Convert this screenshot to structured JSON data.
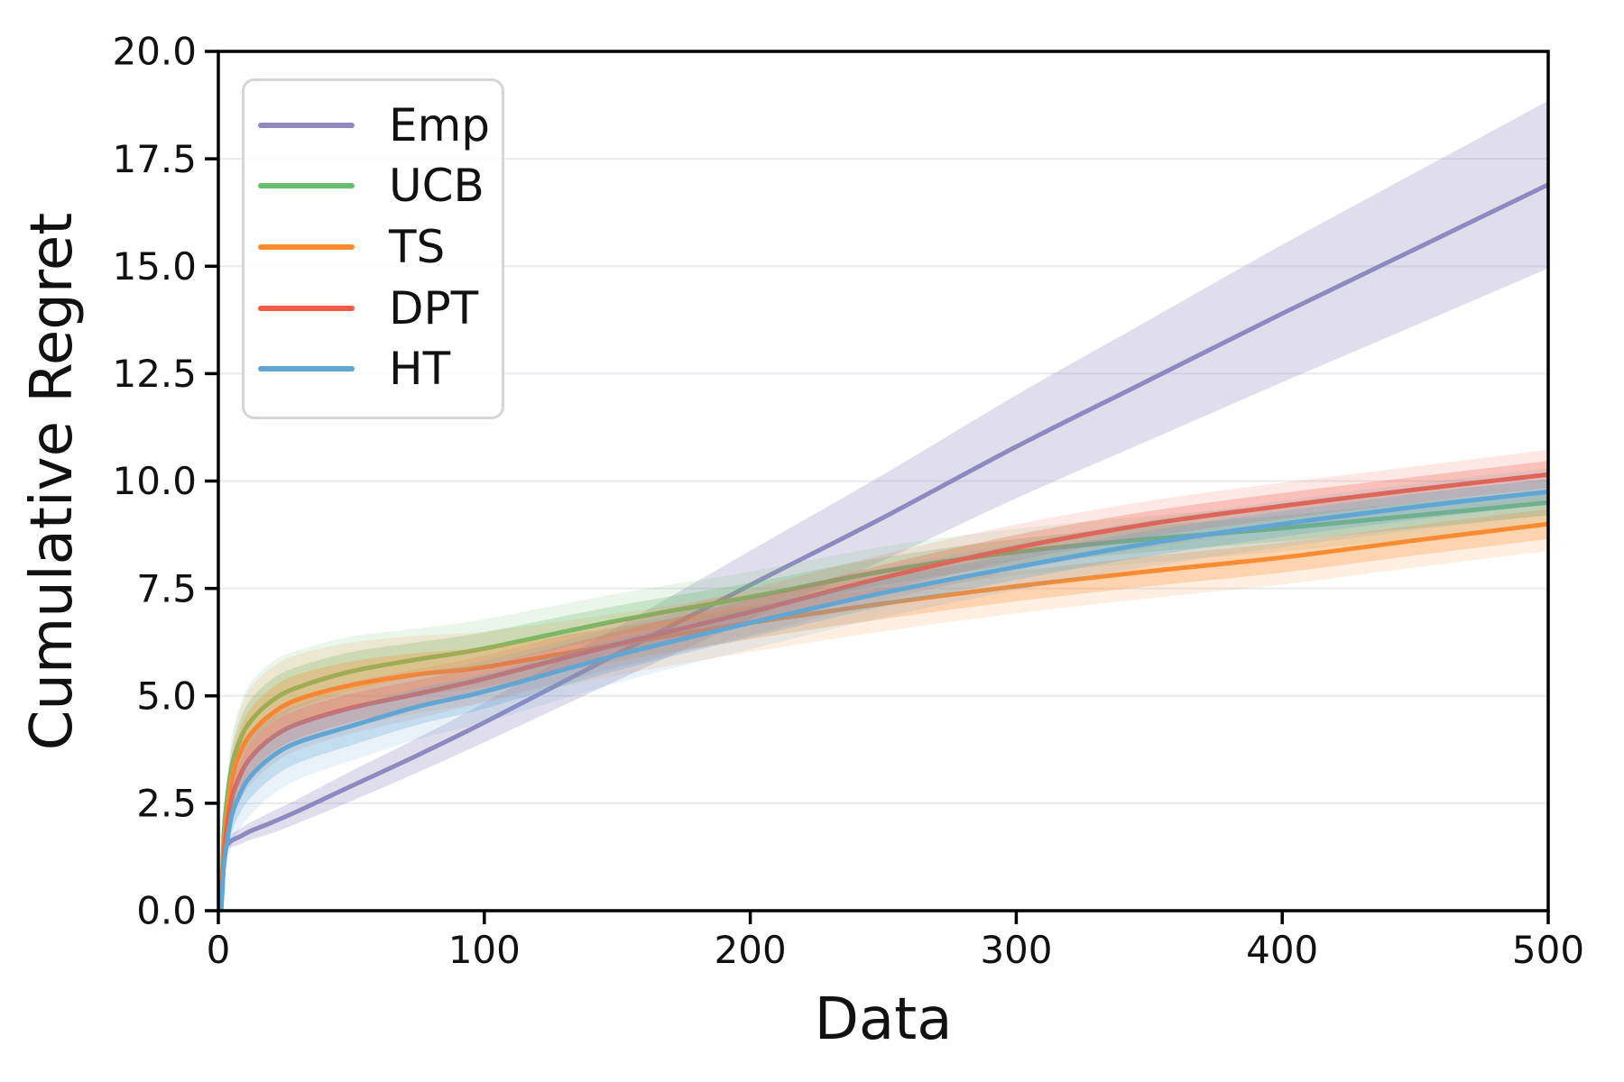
{
  "figure": {
    "xlabel": "Data",
    "ylabel": "Cumulative Regret",
    "background_color": "#ffffff",
    "text_color": "#111111",
    "grid_color": "#e9e9ef",
    "spine_color": "#000000",
    "legend_border_color": "#d5d5d5"
  },
  "chart_data": {
    "type": "line",
    "title": "",
    "xlabel": "Data",
    "ylabel": "Cumulative Regret",
    "xlim": [
      0,
      500
    ],
    "ylim": [
      0,
      20
    ],
    "xticks": [
      "0",
      "100",
      "200",
      "300",
      "400",
      "500"
    ],
    "ytick_values": [
      0,
      2.5,
      5,
      7.5,
      10,
      12.5,
      15,
      17.5,
      20
    ],
    "ytick_labels": [
      "0.0",
      "2.5",
      "5.0",
      "7.5",
      "10.0",
      "12.5",
      "15.0",
      "17.5",
      "20.0"
    ],
    "grid": "horizontal",
    "legend_position": "upper-left",
    "x": [
      0,
      1,
      2,
      3,
      5,
      8,
      12,
      20,
      30,
      50,
      75,
      100,
      150,
      200,
      250,
      300,
      350,
      400,
      450,
      500
    ],
    "series": [
      {
        "name": "Emp",
        "color": "#8e8ac0",
        "values": [
          0,
          0,
          1.3,
          1.5,
          1.63,
          1.72,
          1.85,
          2.05,
          2.32,
          2.9,
          3.62,
          4.38,
          5.98,
          7.58,
          9.15,
          10.8,
          12.35,
          13.9,
          15.4,
          16.9
        ],
        "band_halfwidth": [
          0,
          0.05,
          0.1,
          0.12,
          0.15,
          0.18,
          0.2,
          0.25,
          0.28,
          0.35,
          0.4,
          0.46,
          0.62,
          0.8,
          1.0,
          1.2,
          1.4,
          1.6,
          1.78,
          1.95
        ]
      },
      {
        "name": "UCB",
        "color": "#68be6d",
        "values": [
          0,
          0,
          1.7,
          2.45,
          3.35,
          3.95,
          4.4,
          4.88,
          5.2,
          5.57,
          5.85,
          6.1,
          6.75,
          7.3,
          7.9,
          8.35,
          8.65,
          8.9,
          9.2,
          9.5
        ],
        "band_halfwidth": [
          0,
          0.05,
          0.18,
          0.25,
          0.38,
          0.45,
          0.5,
          0.5,
          0.48,
          0.45,
          0.4,
          0.38,
          0.35,
          0.33,
          0.32,
          0.3,
          0.3,
          0.3,
          0.3,
          0.3
        ]
      },
      {
        "name": "TS",
        "color": "#fb8b30",
        "values": [
          0,
          0,
          1.45,
          2.15,
          3.05,
          3.65,
          4.1,
          4.58,
          4.92,
          5.25,
          5.5,
          5.67,
          6.2,
          6.7,
          7.15,
          7.55,
          7.9,
          8.22,
          8.62,
          9.0
        ],
        "band_halfwidth": [
          0,
          0.05,
          0.2,
          0.3,
          0.45,
          0.55,
          0.6,
          0.6,
          0.58,
          0.55,
          0.5,
          0.46,
          0.4,
          0.38,
          0.36,
          0.35,
          0.35,
          0.35,
          0.35,
          0.35
        ]
      },
      {
        "name": "DPT",
        "color": "#f25c47",
        "values": [
          0,
          0,
          1.2,
          1.8,
          2.6,
          3.12,
          3.55,
          4.02,
          4.35,
          4.72,
          5.05,
          5.4,
          6.2,
          6.95,
          7.75,
          8.45,
          9.0,
          9.42,
          9.8,
          10.15
        ],
        "band_halfwidth": [
          0,
          0.05,
          0.12,
          0.2,
          0.28,
          0.32,
          0.35,
          0.35,
          0.34,
          0.33,
          0.32,
          0.3,
          0.3,
          0.3,
          0.3,
          0.3,
          0.3,
          0.3,
          0.3,
          0.32
        ]
      },
      {
        "name": "HT",
        "color": "#61a6d3",
        "values": [
          0,
          0,
          1.0,
          1.5,
          2.2,
          2.7,
          3.12,
          3.58,
          3.92,
          4.3,
          4.75,
          5.1,
          5.95,
          6.7,
          7.4,
          8.0,
          8.55,
          9.0,
          9.4,
          9.75
        ],
        "band_halfwidth": [
          0,
          0.05,
          0.15,
          0.25,
          0.38,
          0.45,
          0.5,
          0.5,
          0.48,
          0.45,
          0.42,
          0.4,
          0.36,
          0.34,
          0.32,
          0.3,
          0.3,
          0.3,
          0.3,
          0.3
        ]
      }
    ]
  }
}
